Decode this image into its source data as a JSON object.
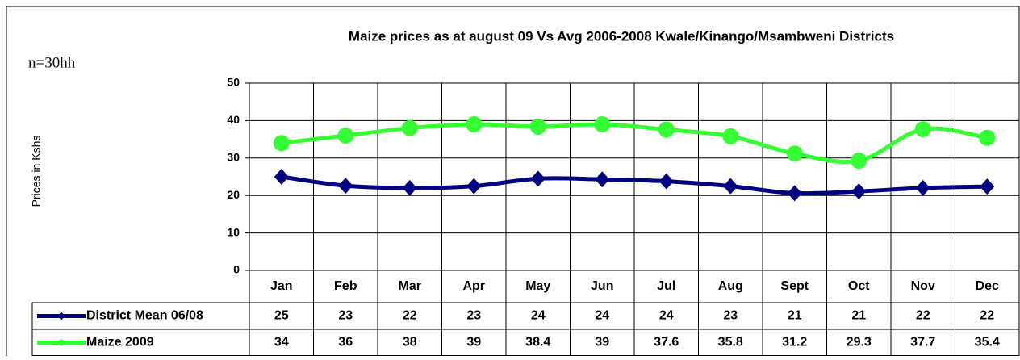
{
  "chart_data": {
    "type": "line",
    "title": "Maize prices as at august 09 Vs Avg 2006-2008 Kwale/Kinango/Msambweni Districts",
    "note": "n=30hh",
    "y_label": "Prices in Kshs",
    "categories": [
      "Jan",
      "Feb",
      "Mar",
      "Apr",
      "May",
      "Jun",
      "Jul",
      "Aug",
      "Sept",
      "Oct",
      "Nov",
      "Dec"
    ],
    "series": [
      {
        "name": "District Mean 06/08",
        "color": "#000080",
        "marker": "diamond",
        "values": [
          25,
          22.6,
          22,
          22.5,
          24.5,
          24.3,
          23.8,
          22.5,
          20.6,
          21.1,
          22,
          22.4
        ],
        "value_labels": [
          "25",
          "23",
          "22",
          "23",
          "24",
          "24",
          "24",
          "23",
          "21",
          "21",
          "22",
          "22"
        ]
      },
      {
        "name": "Maize 2009",
        "color": "#33ff33",
        "marker": "circle",
        "values": [
          34,
          36,
          38,
          39,
          38.4,
          39,
          37.6,
          35.8,
          31.2,
          29.3,
          37.7,
          35.4
        ]
      }
    ],
    "ylim": [
      0,
      50
    ],
    "yticks": [
      0,
      10,
      20,
      30,
      40,
      50
    ],
    "grid": true,
    "data_table": true
  }
}
